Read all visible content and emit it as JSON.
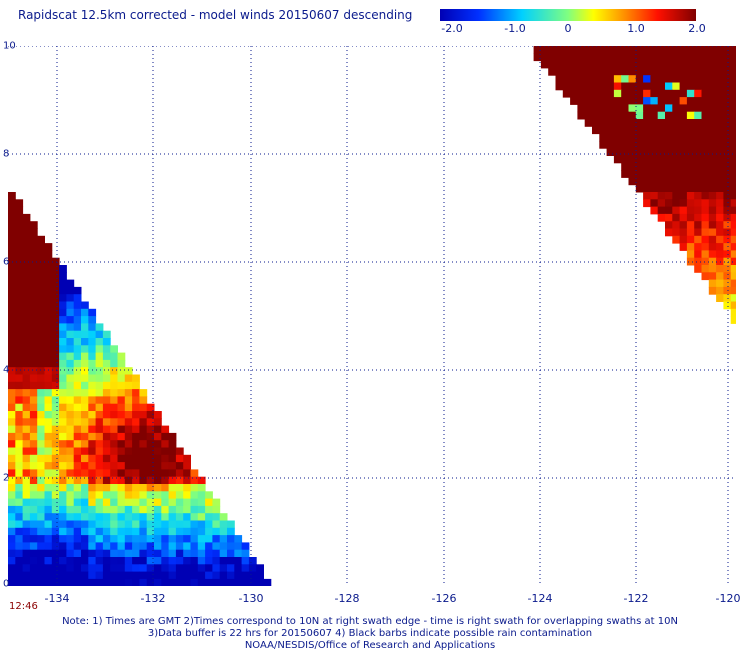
{
  "title": "Rapidscat 12.5km corrected - model winds 20150607 descending",
  "colorbar": {
    "labels": [
      "-2.0",
      "-1.0",
      "0",
      "1.0",
      "2.0"
    ],
    "min": -2.0,
    "max": 2.0,
    "colormap": "rainbow (blue-cyan-green-yellow-orange-red-darkred)"
  },
  "axes": {
    "x_ticks": [
      "-134",
      "-132",
      "-130",
      "-128",
      "-126",
      "-124",
      "-122",
      "-120"
    ],
    "y_ticks": [
      "0",
      "2",
      "4",
      "6",
      "8",
      "10"
    ],
    "xlim": [
      -135,
      -120
    ],
    "ylim": [
      0,
      10
    ],
    "grid": true
  },
  "time_label": "12:46",
  "notes": [
    "Note: 1) Times are GMT 2)Times correspond to 10N at right swath edge - time is right swath for overlapping swaths at 10N",
    "3)Data buffer is 22 hrs for 20150607 4) Black barbs indicate possible rain contamination",
    "NOAA/NESDIS/Office of Research and Applications"
  ],
  "chart_data": {
    "type": "heatmap",
    "title": "Rapidscat 12.5km corrected - model winds 20150607 descending",
    "x_range": [
      -135,
      -120
    ],
    "y_range": [
      0,
      10
    ],
    "value_range": [
      -2.0,
      2.0
    ],
    "swaths": [
      {
        "description": "left swath (west)",
        "approx_mean_difference": 0.6,
        "features": [
          "strong positive (>2.0) near lat 4-6 at lon -135",
          "positive core ~2 near lat 2.5 at lon -132.5",
          "negative (~-1.5) south of lat 1.5"
        ]
      },
      {
        "description": "right swath (northeast)",
        "approx_mean_difference": 1.5,
        "features": [
          "saturated >2.0 above lat 7.5",
          "positive gradient to ~0.5 near lat 5"
        ]
      }
    ]
  }
}
